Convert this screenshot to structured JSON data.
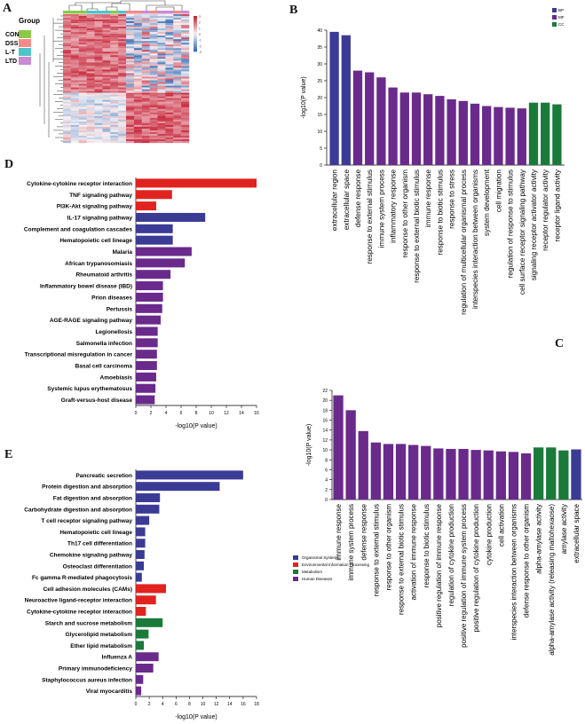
{
  "panels": {
    "A": "A",
    "B": "B",
    "C": "C",
    "D": "D",
    "E": "E"
  },
  "colors": {
    "bp": "#3b3b96",
    "mf": "#6a2a8c",
    "cc": "#1a7a3a",
    "red": "#e0231f",
    "heat_high": "#c8283c",
    "heat_low": "#3a6cb4"
  },
  "heatmap": {
    "legend_title": "Group",
    "groups": [
      {
        "name": "CON",
        "color": "#8cc84a"
      },
      {
        "name": "DSS",
        "color": "#f48a8a"
      },
      {
        "name": "L-T",
        "color": "#4ec5c8"
      },
      {
        "name": "LTD",
        "color": "#c98ad6"
      }
    ],
    "scale_labels": [
      "3",
      "2",
      "1",
      "0",
      "-1",
      "-2",
      "-3"
    ]
  },
  "chart_data": [
    {
      "id": "B",
      "type": "bar",
      "ylabel": "-log10(P value)",
      "ylim": [
        0,
        40
      ],
      "yticks": [
        0,
        5,
        10,
        15,
        20,
        25,
        30,
        35,
        40
      ],
      "legend": [
        "BP",
        "MF",
        "CC"
      ],
      "categories": [
        "extracellular region",
        "extracellular space",
        "defense response",
        "response to external stimulus",
        "immune system process",
        "inflammatory response",
        "response to other organism",
        "response to external biotic stimulus",
        "immune response",
        "response to biotic stimulus",
        "response to stress",
        "regulation of multicellular organismal process",
        "interspecies interaction between organisms",
        "system development",
        "cell migration",
        "regulation of response to stimulus",
        "cell surface receptor signaling pathway",
        "signaling receptor activator activity",
        "receptor regulator activity",
        "receptor ligand activity"
      ],
      "values": [
        39.5,
        38.5,
        28.0,
        27.5,
        26.0,
        23.0,
        21.5,
        21.5,
        21.0,
        20.5,
        19.5,
        19.0,
        18.2,
        17.5,
        17.2,
        17.0,
        16.8,
        18.5,
        18.5,
        18.0
      ],
      "groups": [
        "BP",
        "BP",
        "MF",
        "MF",
        "MF",
        "MF",
        "MF",
        "MF",
        "MF",
        "MF",
        "MF",
        "MF",
        "MF",
        "MF",
        "MF",
        "MF",
        "MF",
        "CC",
        "CC",
        "CC"
      ]
    },
    {
      "id": "C",
      "type": "bar",
      "ylabel": "-log10(P value)",
      "ylim": [
        0,
        22
      ],
      "yticks": [
        0,
        2,
        4,
        6,
        8,
        10,
        12,
        14,
        16,
        18,
        20,
        22
      ],
      "categories": [
        "immune response",
        "immune system process",
        "defense response",
        "response to external stimulus",
        "response to other organism",
        "response to external biotic stimulus",
        "activation of immune response",
        "response to biotic stimulus",
        "positive regulation of immune response",
        "regulation of cytokine production",
        "positive regulation of immune system process",
        "positive regulation of cytokine production",
        "cytokine production",
        "cell activation",
        "interspecies interaction between organisms",
        "defense response to other organism",
        "alpha-amylase activity",
        "alpha-amylase activity (releasing maltohexaose)",
        "amylase activity",
        "extracellular space"
      ],
      "values": [
        21.0,
        18.0,
        13.8,
        11.5,
        11.2,
        11.2,
        11.0,
        10.8,
        10.3,
        10.2,
        10.2,
        10.0,
        9.9,
        9.7,
        9.6,
        9.3,
        10.5,
        10.5,
        9.9,
        10.1
      ],
      "groups": [
        "MF",
        "MF",
        "MF",
        "MF",
        "MF",
        "MF",
        "MF",
        "MF",
        "MF",
        "MF",
        "MF",
        "MF",
        "MF",
        "MF",
        "MF",
        "MF",
        "CC",
        "CC",
        "CC",
        "BP"
      ]
    },
    {
      "id": "D",
      "type": "barh",
      "xlabel": "-log10(P value)",
      "xlim": [
        0,
        16
      ],
      "xticks": [
        0,
        2,
        4,
        6,
        8,
        10,
        12,
        14,
        16
      ],
      "categories": [
        "Cytokine-cytokine receptor interaction",
        "TNF signaling pathway",
        "PI3K-Akt signaling pathway",
        "IL-17 signaling pathway",
        "Complement and coagulation cascades",
        "Hematopoietic cell lineage",
        "Malaria",
        "African trypanosomiasis",
        "Rheumatoid arthritis",
        "Inflammatory bowel disease (IBD)",
        "Prion diseases",
        "Pertussis",
        "AGE-RAGE signaling pathway",
        "Legionellosis",
        "Salmonella infection",
        "Transcriptional misregulation in cancer",
        "Basal cell carcinoma",
        "Amoebiasis",
        "Systemic lupus erythematosus",
        "Graft-versus-host disease"
      ],
      "values": [
        16.0,
        4.8,
        2.7,
        9.2,
        4.9,
        4.9,
        7.4,
        6.5,
        4.6,
        3.6,
        3.6,
        3.5,
        3.3,
        2.9,
        2.9,
        2.8,
        2.8,
        2.7,
        2.6,
        2.5
      ],
      "groups": [
        "EIP",
        "EIP",
        "EIP",
        "OS",
        "OS",
        "OS",
        "HD",
        "HD",
        "HD",
        "HD",
        "HD",
        "HD",
        "HD",
        "HD",
        "HD",
        "HD",
        "HD",
        "HD",
        "HD",
        "HD"
      ]
    },
    {
      "id": "E",
      "type": "barh",
      "xlabel": "-log10(P value)",
      "xlim": [
        0,
        18
      ],
      "xticks": [
        0,
        2,
        4,
        6,
        8,
        10,
        12,
        14,
        16,
        18
      ],
      "legend": [
        "Organismal Systems",
        "Environmental Information Processing",
        "Metabolism",
        "Human Diseases"
      ],
      "categories": [
        "Pancreatic secretion",
        "Protein digestion and absorption",
        "Fat digestion and absorption",
        "Carbohydrate digestion and absorption",
        "T cell receptor signaling pathway",
        "Hematopoietic cell lineage",
        "Th17 cell differentiation",
        "Chemokine signaling pathway",
        "Osteoclast differentiation",
        "Fc gamma R-mediated phagocytosis",
        "Cell adhesion molecules (CAMs)",
        "Neuroactive ligand-receptor interaction",
        "Cytokine-cytokine receptor interaction",
        "Starch and sucrose metabolism",
        "Glycerolipid metabolism",
        "Ether lipid metabolism",
        "Influenza A",
        "Primary immunodeficiency",
        "Staphylococcus aureus infection",
        "Viral myocarditis"
      ],
      "values": [
        16.0,
        12.5,
        3.6,
        3.5,
        2.0,
        1.4,
        1.4,
        1.3,
        1.2,
        0.9,
        4.5,
        3.0,
        1.5,
        4.0,
        1.9,
        1.2,
        3.4,
        2.6,
        1.1,
        0.8
      ],
      "groups": [
        "OS",
        "OS",
        "OS",
        "OS",
        "OS",
        "OS",
        "OS",
        "OS",
        "OS",
        "OS",
        "EIP",
        "EIP",
        "EIP",
        "M",
        "M",
        "M",
        "HD",
        "HD",
        "HD",
        "HD"
      ]
    }
  ]
}
